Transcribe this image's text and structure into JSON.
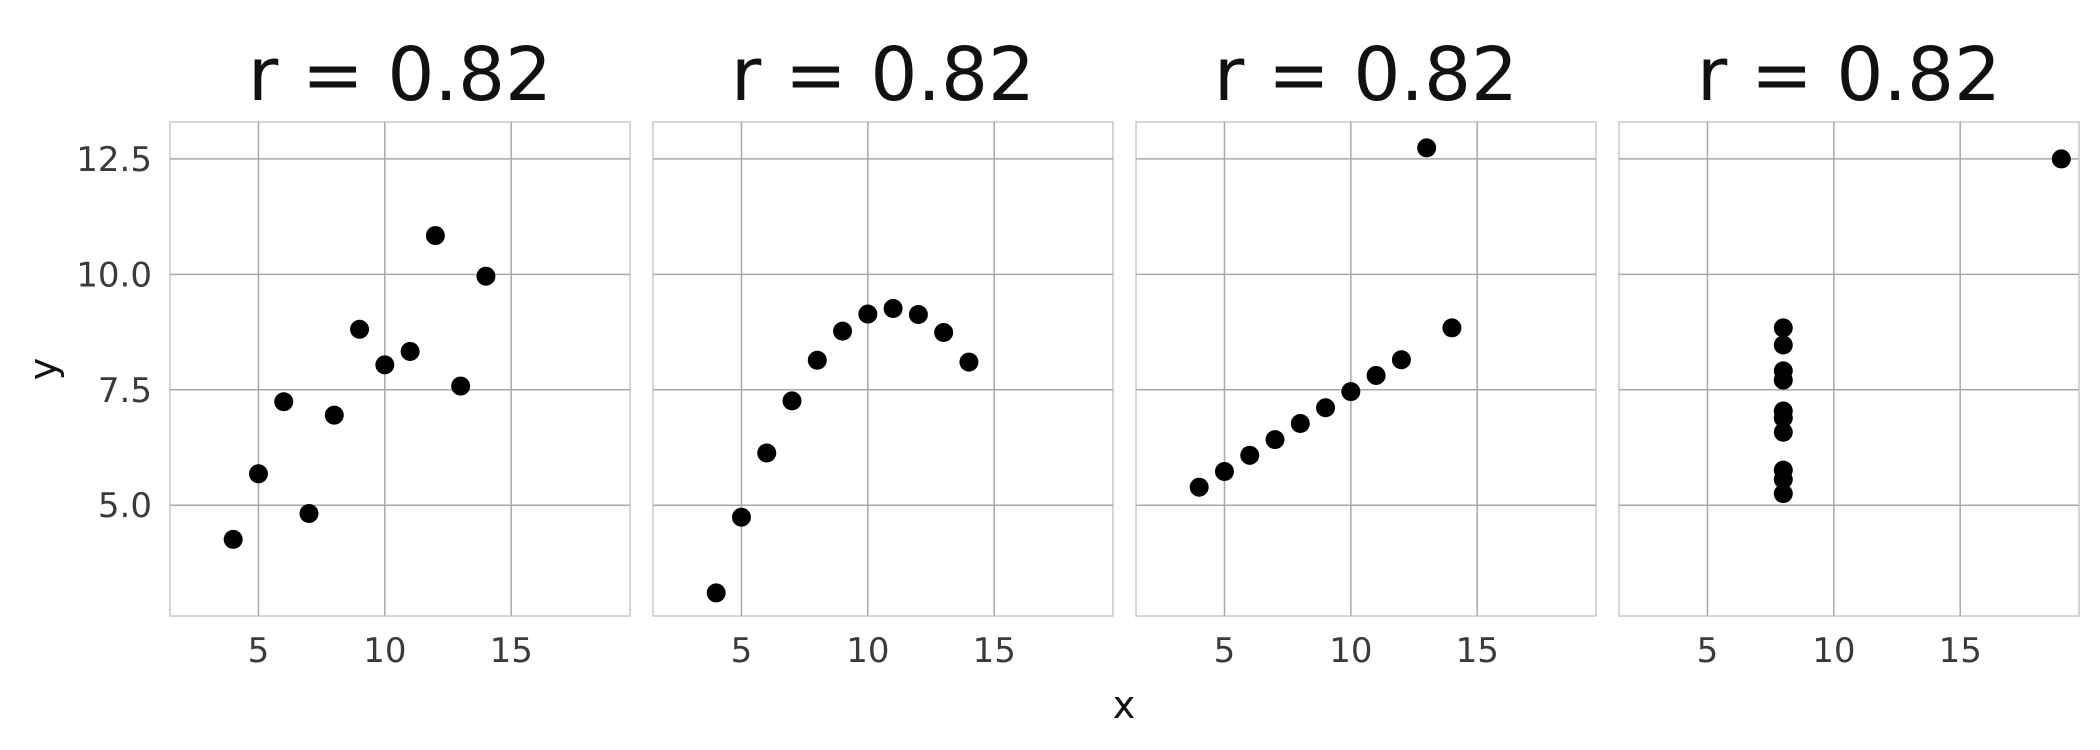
{
  "chart_data": [
    {
      "type": "scatter",
      "title": "r = 0.82",
      "x": [
        10,
        8,
        13,
        9,
        11,
        14,
        6,
        4,
        12,
        7,
        5
      ],
      "y": [
        8.04,
        6.95,
        7.58,
        8.81,
        8.33,
        9.96,
        7.24,
        4.26,
        10.84,
        4.82,
        5.68
      ],
      "xlim": [
        1.5,
        19.7
      ],
      "ylim": [
        2.6,
        13.3
      ],
      "xticks": [
        5,
        10,
        15
      ],
      "yticks": [
        5.0,
        7.5,
        10.0,
        12.5
      ]
    },
    {
      "type": "scatter",
      "title": "r = 0.82",
      "x": [
        10,
        8,
        13,
        9,
        11,
        14,
        6,
        4,
        12,
        7,
        5
      ],
      "y": [
        9.14,
        8.14,
        8.74,
        8.77,
        9.26,
        8.1,
        6.13,
        3.1,
        9.13,
        7.26,
        4.74
      ],
      "xlim": [
        1.5,
        19.7
      ],
      "ylim": [
        2.6,
        13.3
      ],
      "xticks": [
        5,
        10,
        15
      ],
      "yticks": [
        5.0,
        7.5,
        10.0,
        12.5
      ]
    },
    {
      "type": "scatter",
      "title": "r = 0.82",
      "x": [
        10,
        8,
        13,
        9,
        11,
        14,
        6,
        4,
        12,
        7,
        5
      ],
      "y": [
        7.46,
        6.77,
        12.74,
        7.11,
        7.81,
        8.84,
        6.08,
        5.39,
        8.15,
        6.42,
        5.73
      ],
      "xlim": [
        1.5,
        19.7
      ],
      "ylim": [
        2.6,
        13.3
      ],
      "xticks": [
        5,
        10,
        15
      ],
      "yticks": [
        5.0,
        7.5,
        10.0,
        12.5
      ]
    },
    {
      "type": "scatter",
      "title": "r = 0.82",
      "x": [
        8,
        8,
        8,
        8,
        8,
        8,
        8,
        19,
        8,
        8,
        8
      ],
      "y": [
        6.58,
        5.76,
        7.71,
        8.84,
        8.47,
        7.04,
        5.25,
        12.5,
        5.56,
        7.91,
        6.89
      ],
      "xlim": [
        1.5,
        19.7
      ],
      "ylim": [
        2.6,
        13.3
      ],
      "xticks": [
        5,
        10,
        15
      ],
      "yticks": [
        5.0,
        7.5,
        10.0,
        12.5
      ]
    }
  ],
  "axes": {
    "xlabel": "x",
    "ylabel": "y",
    "grid": true,
    "shared_y": true
  },
  "colors": {
    "points": "#000000",
    "grid": "#a9a9a9",
    "frame": "#c8c8c8",
    "text": "#3a3a3a"
  }
}
